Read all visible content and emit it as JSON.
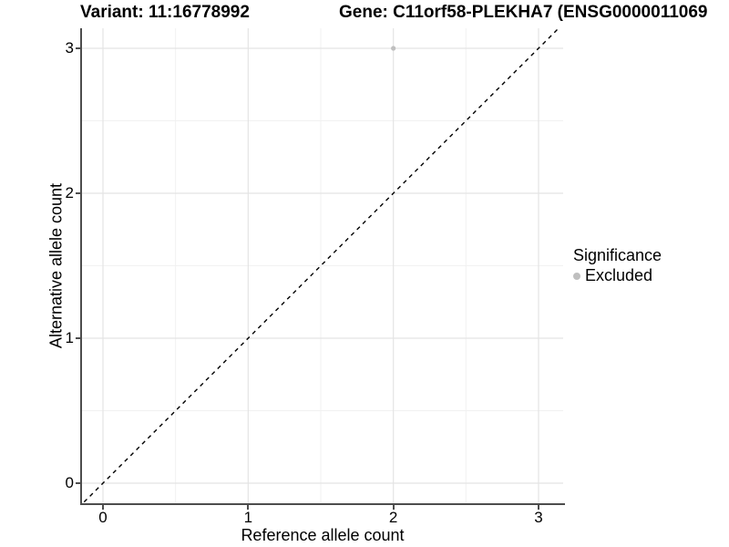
{
  "header": {
    "variant_title": "Variant: 11:16778992",
    "gene_title": "Gene: C11orf58-PLEKHA7 (ENSG0000011069"
  },
  "legend": {
    "title": "Significance",
    "items": [
      {
        "label": "Excluded",
        "color": "#bfbfbf",
        "marker": "circle-icon"
      }
    ]
  },
  "chart_data": {
    "type": "scatter",
    "x": {
      "label": "Reference allele count",
      "ticks": [
        0,
        1,
        2,
        3
      ],
      "minor_ticks": [
        0.5,
        1.5,
        2.5
      ],
      "range": [
        -0.15,
        3.17
      ]
    },
    "y": {
      "label": "Alternative allele count",
      "ticks": [
        0,
        1,
        2,
        3
      ],
      "minor_ticks": [
        0.5,
        1.5,
        2.5
      ],
      "range": [
        -0.15,
        3.14
      ]
    },
    "series": [
      {
        "name": "Excluded",
        "color": "#bfbfbf",
        "point_radius": 2.6,
        "points": [
          {
            "x": 2,
            "y": 3
          }
        ]
      }
    ],
    "reference_line": {
      "type": "identity",
      "equation": "y = x",
      "style": "dashed",
      "color": "#000000"
    },
    "grid": {
      "major_color": "#e4e4e4",
      "minor_color": "#f1f1f1",
      "background": "#ffffff"
    },
    "axis_color": "#4d4d4d"
  }
}
